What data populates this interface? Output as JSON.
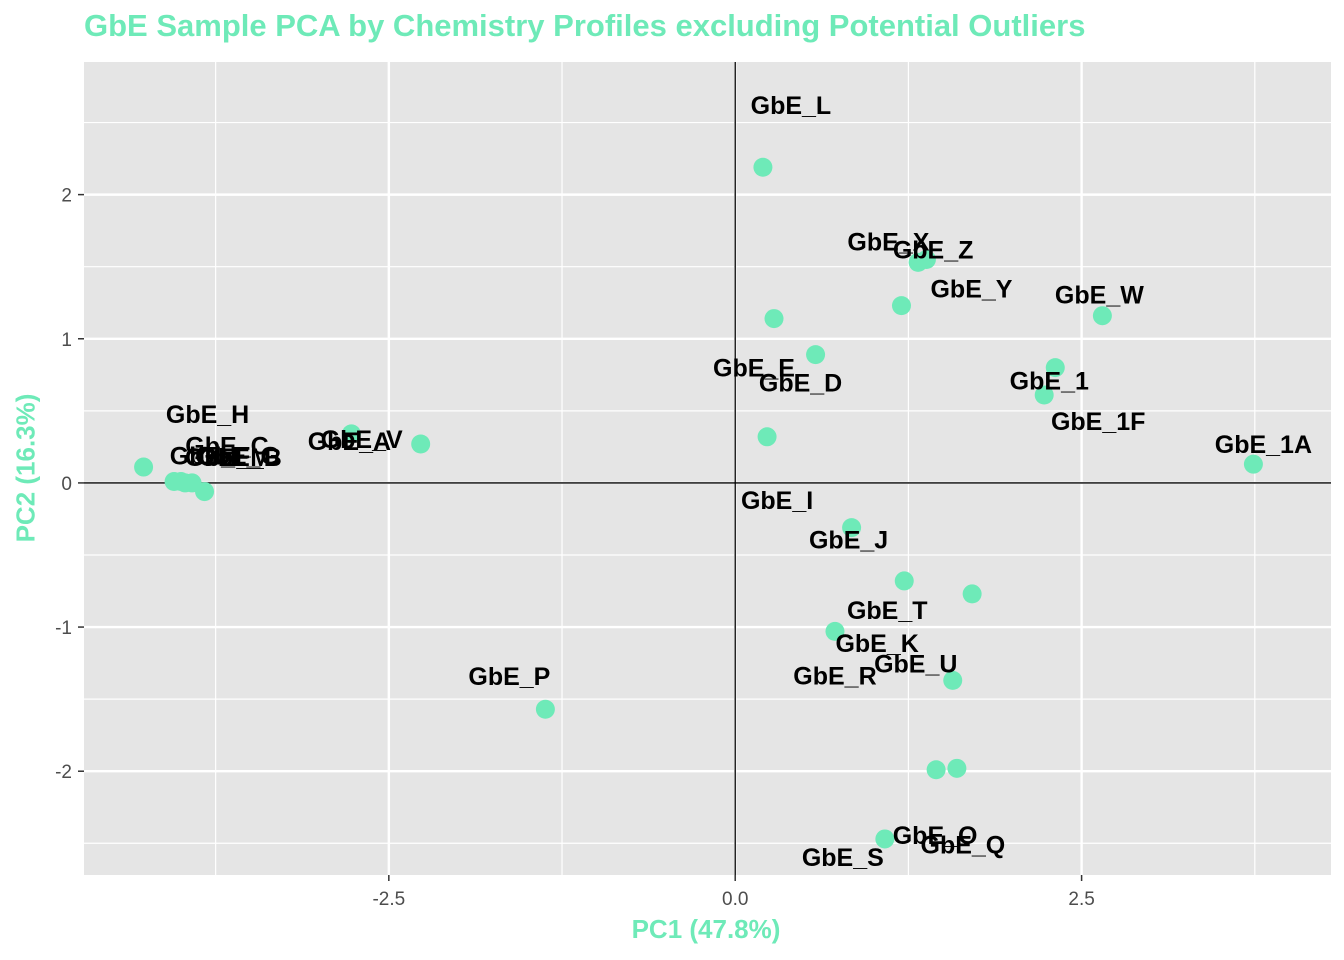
{
  "colors": {
    "accent": "#6eeab8",
    "panel": "#e5e5e5",
    "grid": "#ffffff",
    "text": "#000000",
    "axis_text": "#4d4d4d"
  },
  "chart_data": {
    "type": "scatter",
    "title": "GbE Sample PCA by Chemistry Profiles excluding Potential Outliers",
    "xlabel": "PC1 (47.8%)",
    "ylabel": "PC2 (16.3%)",
    "xlim": [
      -4.7,
      4.3
    ],
    "ylim": [
      -2.72,
      2.92
    ],
    "x_ticks": [
      -2.5,
      0.0,
      2.5
    ],
    "x_tick_labels": [
      "-2.5",
      "0.0",
      "2.5"
    ],
    "y_ticks": [
      -2,
      -1,
      0,
      1,
      2
    ],
    "y_tick_labels": [
      "-2",
      "-1",
      "0",
      "1",
      "2"
    ],
    "grid": true,
    "reference_lines": {
      "x": 0,
      "y": 0
    },
    "points": [
      {
        "label": "GbE_L",
        "x": 0.2,
        "y": 2.19
      },
      {
        "label": "GbE_X",
        "x": 1.38,
        "y": 1.55
      },
      {
        "label": "GbE_Z",
        "x": 1.32,
        "y": 1.53
      },
      {
        "label": "GbE_Y",
        "x": 1.2,
        "y": 1.23
      },
      {
        "label": "GbE_E",
        "x": 0.28,
        "y": 1.14
      },
      {
        "label": "GbE_D",
        "x": 0.58,
        "y": 0.89
      },
      {
        "label": "GbE_W",
        "x": 2.65,
        "y": 1.16
      },
      {
        "label": "GbE_1",
        "x": 2.31,
        "y": 0.8
      },
      {
        "label": "GbE_1F",
        "x": 2.23,
        "y": 0.61
      },
      {
        "label": "GbE_1A",
        "x": 3.74,
        "y": 0.13
      },
      {
        "label": "GbE_I",
        "x": 0.23,
        "y": 0.32
      },
      {
        "label": "GbE_H",
        "x": -4.27,
        "y": 0.11
      },
      {
        "label": "GbE_F",
        "x": -4.05,
        "y": 0.01
      },
      {
        "label": "GbE_C",
        "x": -4.0,
        "y": 0.01
      },
      {
        "label": "GbE_B",
        "x": -3.97,
        "y": 0.0
      },
      {
        "label": "GbE_M",
        "x": -3.92,
        "y": 0.0
      },
      {
        "label": "GbE_G",
        "x": -3.83,
        "y": -0.06
      },
      {
        "label": "GbE_V",
        "x": -2.27,
        "y": 0.27
      },
      {
        "label": "GbE_A",
        "x": -2.77,
        "y": 0.34
      },
      {
        "label": "GbE_J",
        "x": 0.84,
        "y": -0.31
      },
      {
        "label": "GbE_T",
        "x": 1.22,
        "y": -0.68
      },
      {
        "label": "GbE_K",
        "x": 1.71,
        "y": -0.77
      },
      {
        "label": "GbE_R",
        "x": 0.72,
        "y": -1.03
      },
      {
        "label": "GbE_U",
        "x": 1.57,
        "y": -1.37
      },
      {
        "label": "GbE_P",
        "x": -1.37,
        "y": -1.57
      },
      {
        "label": "GbE_Q",
        "x": 1.6,
        "y": -1.98
      },
      {
        "label": "GbE_O",
        "x": 1.45,
        "y": -1.99
      },
      {
        "label": "GbE_S",
        "x": 1.08,
        "y": -2.47
      }
    ]
  }
}
